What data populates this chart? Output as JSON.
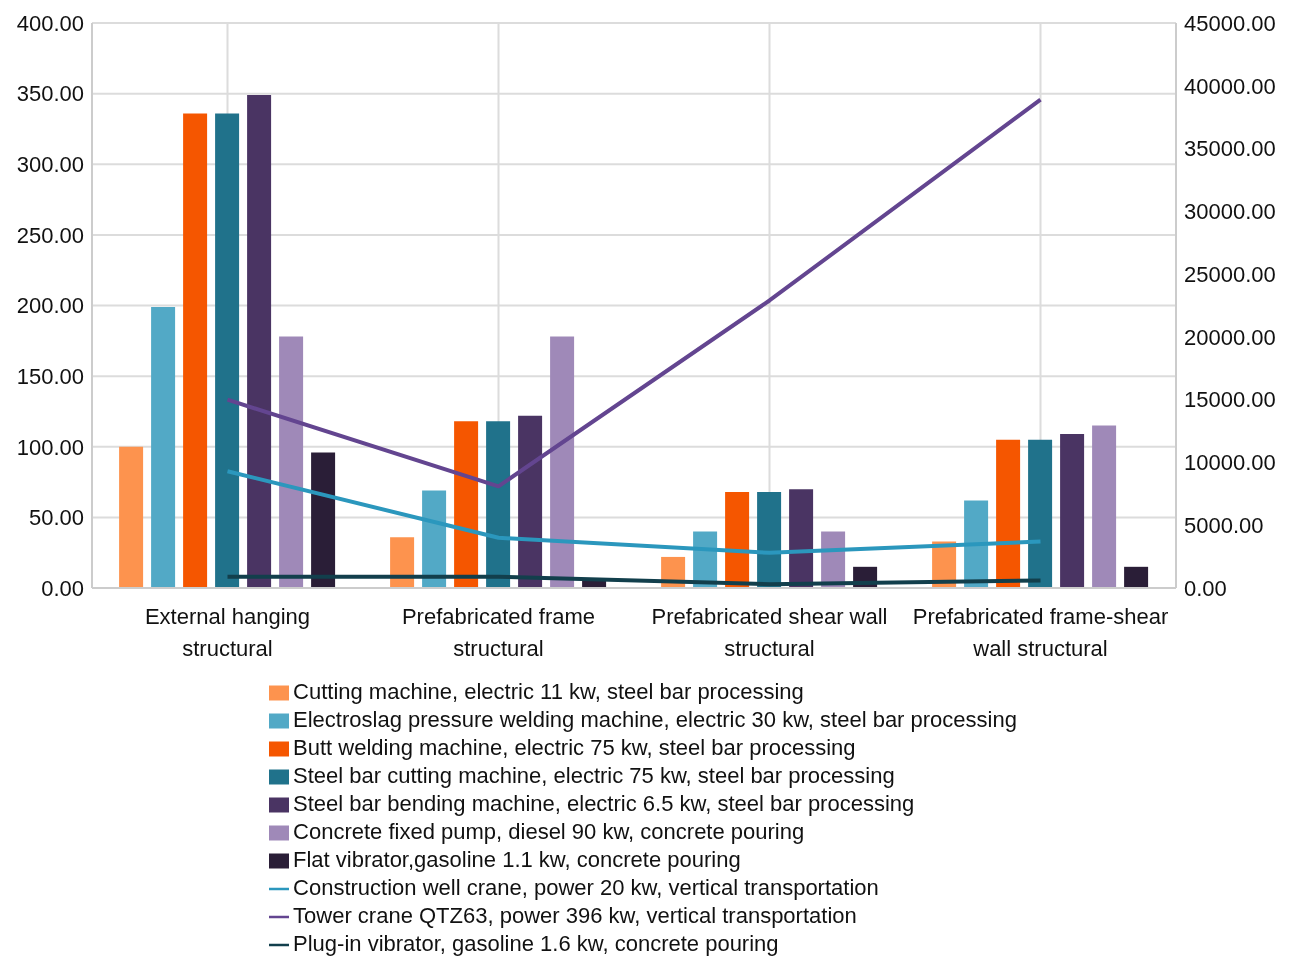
{
  "chart_data": {
    "type": "bar",
    "categories": [
      "External hanging structural",
      "Prefabricated frame structural",
      "Prefabricated shear wall structural",
      "Prefabricated frame-shear wall structural"
    ],
    "series": [
      {
        "name": "Cutting machine, electric 11 kw, steel bar processing",
        "color": "#fd934e",
        "values": [
          100,
          36,
          22,
          33
        ]
      },
      {
        "name": "Electroslag pressure welding machine, electric 30 kw, steel bar processing",
        "color": "#52a9c6",
        "values": [
          199,
          69,
          40,
          62
        ]
      },
      {
        "name": "Butt welding machine, electric 75 kw, steel bar processing",
        "color": "#f55600",
        "values": [
          336,
          118,
          68,
          105
        ]
      },
      {
        "name": "Steel bar cutting machine, electric 75 kw, steel bar processing",
        "color": "#20728b",
        "values": [
          336,
          118,
          68,
          105
        ]
      },
      {
        "name": "Steel bar bending machine, electric 6.5 kw, steel bar processing",
        "color": "#4a3463",
        "values": [
          349,
          122,
          70,
          109
        ]
      },
      {
        "name": "Concrete fixed pump, diesel 90 kw, concrete pouring",
        "color": "#9f89b8",
        "values": [
          178,
          178,
          40,
          115
        ]
      },
      {
        "name": "Flat vibrator,gasoline 1.1 kw, concrete pouring",
        "color": "#2a1e37",
        "values": [
          96,
          7,
          15,
          15
        ]
      },
      {
        "name": "Construction well crane, power 20 kw, vertical transportation",
        "type": "line",
        "axis": "y2",
        "color": "#2b97bd",
        "values": [
          9300,
          4000,
          2800,
          3700
        ]
      },
      {
        "name": "Tower crane QTZ63, power 396 kw, vertical transportation",
        "type": "line",
        "axis": "y2",
        "color": "#634590",
        "values": [
          15000,
          8100,
          22900,
          38900
        ]
      },
      {
        "name": "Plug-in vibrator, gasoline 1.6 kw, concrete pouring",
        "type": "line",
        "axis": "y2",
        "color": "#123f4c",
        "values": [
          900,
          900,
          300,
          600
        ]
      }
    ],
    "ylim": [
      0,
      400
    ],
    "yticks": [
      {
        "value": 0,
        "label": "0.00"
      },
      {
        "value": 50,
        "label": "50.00"
      },
      {
        "value": 100,
        "label": "100.00"
      },
      {
        "value": 150,
        "label": "150.00"
      },
      {
        "value": 200,
        "label": "200.00"
      },
      {
        "value": 250,
        "label": "250.00"
      },
      {
        "value": 300,
        "label": "300.00"
      },
      {
        "value": 350,
        "label": "350.00"
      },
      {
        "value": 400,
        "label": "400.00"
      }
    ],
    "y2lim": [
      0,
      45000
    ],
    "y2ticks": [
      {
        "value": 0,
        "label": "0.00"
      },
      {
        "value": 5000,
        "label": "5000.00"
      },
      {
        "value": 10000,
        "label": "10000.00"
      },
      {
        "value": 15000,
        "label": "15000.00"
      },
      {
        "value": 20000,
        "label": "20000.00"
      },
      {
        "value": 25000,
        "label": "25000.00"
      },
      {
        "value": 30000,
        "label": "30000.00"
      },
      {
        "value": 35000,
        "label": "35000.00"
      },
      {
        "value": 40000,
        "label": "40000.00"
      },
      {
        "value": 45000,
        "label": "45000.00"
      }
    ],
    "grid": true,
    "legend": "bottom",
    "marker": "none",
    "line_style": "solid"
  }
}
